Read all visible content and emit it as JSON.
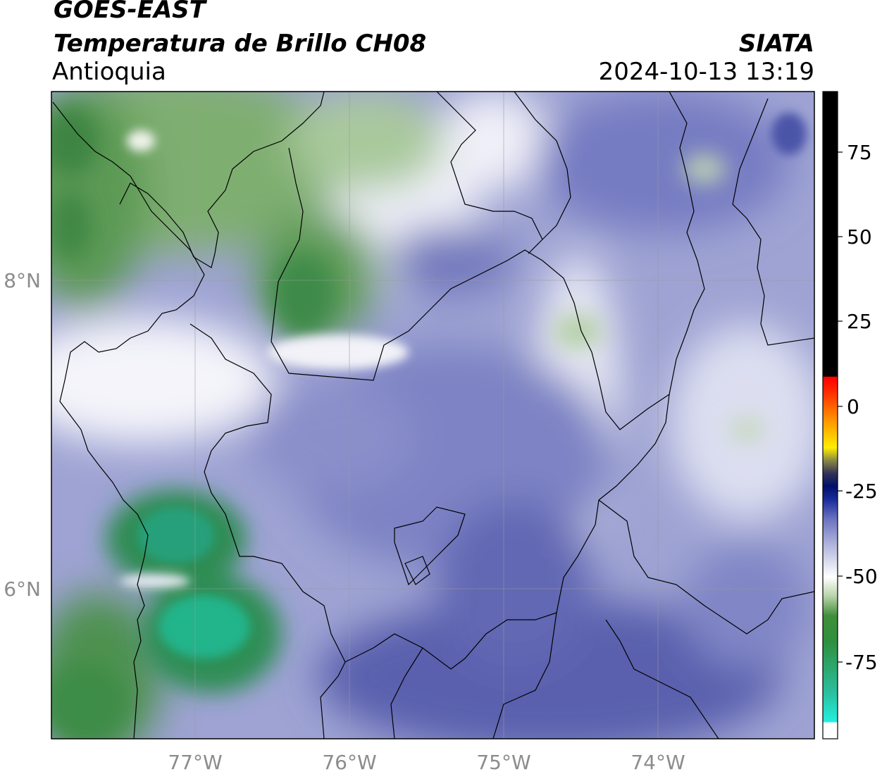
{
  "header": {
    "satellite": "GOES-EAST",
    "product": "Temperatura de Brillo CH08",
    "region": "Antioquia",
    "source": "SIATA",
    "datetime": "2024-10-13 13:19"
  },
  "map": {
    "lon_ticks": [
      "77°W",
      "76°W",
      "75°W",
      "74°W"
    ],
    "lat_ticks": [
      "8°N",
      "6°N"
    ]
  },
  "colorbar": {
    "ticks": [
      "75",
      "50",
      "25",
      "0",
      "-25",
      "-50",
      "-75"
    ],
    "colors": {
      "hot": "#000000",
      "red": "#ff2200",
      "orange": "#ff9900",
      "yellow": "#ffee00",
      "dark": "#222244",
      "navy": "#001a80",
      "violet": "#6a72c0",
      "white": "#ffffff",
      "green": "#2f7f2f",
      "teal": "#22e8d8"
    }
  }
}
